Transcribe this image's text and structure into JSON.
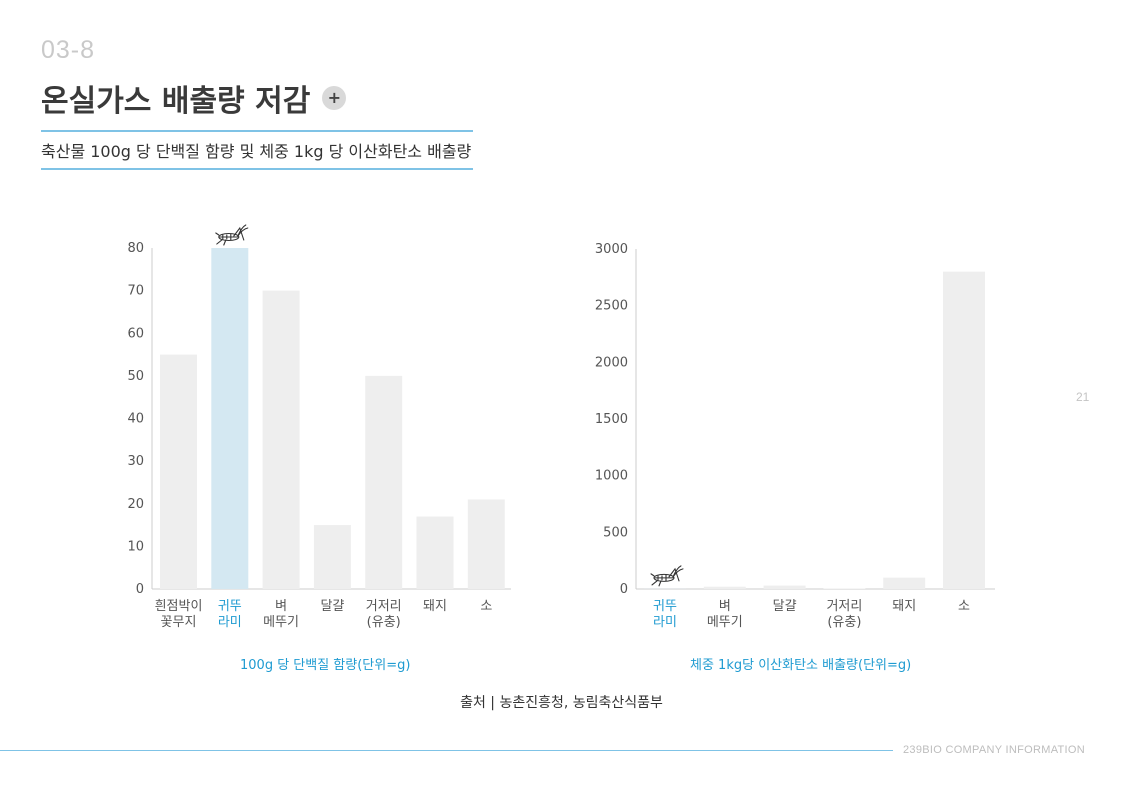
{
  "header": {
    "section_number": "03-8",
    "title": "온실가스 배출량 저감",
    "plus_label": "+",
    "subtitle": "축산물 100g 당 단백질 함량 및 체중 1kg 당 이산화탄소 배출량"
  },
  "colors": {
    "bar": "#eeeeee",
    "highlight_bar": "#d4e8f2",
    "highlight_text": "#1f9bd1",
    "axis": "#cccccc",
    "accent_line": "#7fc3e6"
  },
  "chart_data": [
    {
      "type": "bar",
      "categories": [
        [
          "흰점박이",
          "꽃무지"
        ],
        [
          "귀뚜",
          "라미"
        ],
        [
          "벼",
          "메뚜기"
        ],
        [
          "달걀"
        ],
        [
          "거저리",
          "(유충)"
        ],
        [
          "돼지"
        ],
        [
          "소"
        ]
      ],
      "values": [
        55,
        80,
        70,
        15,
        50,
        17,
        21
      ],
      "highlight_index": 1,
      "xlabel": "100g 당 단백질 함량(단위=g)",
      "ylabel": "",
      "ylim": [
        0,
        80
      ],
      "yticks": [
        0,
        10,
        20,
        30,
        40,
        50,
        60,
        70,
        80
      ],
      "grid": false
    },
    {
      "type": "bar",
      "categories": [
        [
          "귀뚜",
          "라미"
        ],
        [
          "벼",
          "메뚜기"
        ],
        [
          "달걀"
        ],
        [
          "거저리",
          "(유충)"
        ],
        [
          "돼지"
        ],
        [
          "소"
        ]
      ],
      "values": [
        1,
        20,
        30,
        5,
        100,
        2800
      ],
      "highlight_index": 0,
      "xlabel": "체중 1kg당 이산화탄소 배출량(단위=g)",
      "ylabel": "",
      "ylim": [
        0,
        3000
      ],
      "yticks": [
        0,
        500,
        1000,
        1500,
        2000,
        2500,
        3000
      ],
      "grid": false
    }
  ],
  "source": "출처 | 농촌진흥청, 농림축산식품부",
  "page_number": "21",
  "footer": "239BIO COMPANY INFORMATION",
  "icons": {
    "highlight_marker": "cricket-icon"
  }
}
